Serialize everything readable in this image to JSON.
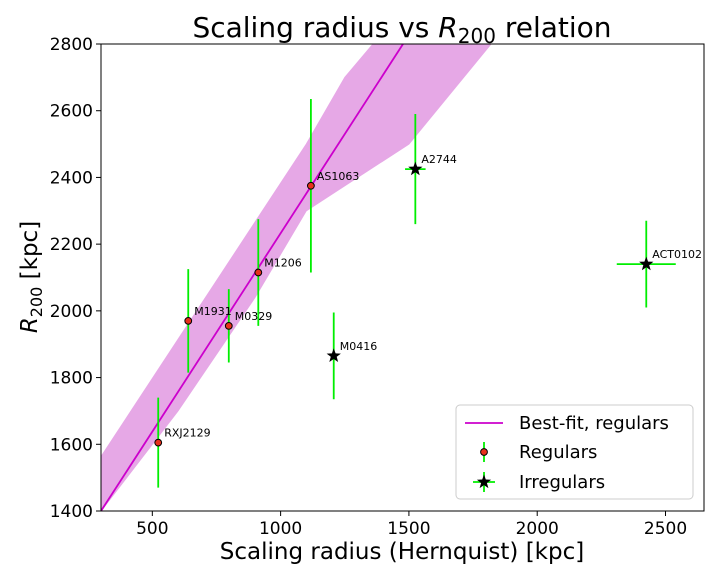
{
  "chart_data": {
    "type": "scatter",
    "title_prefix": "Scaling radius vs ",
    "title_symbol": "R",
    "title_subscript": "200",
    "title_suffix": " relation",
    "xlabel": "Scaling radius (Hernquist) [kpc]",
    "ylabel_symbol": "R",
    "ylabel_subscript": "200",
    "ylabel_suffix": " [kpc]",
    "xlim": [
      300,
      2650
    ],
    "ylim": [
      1400,
      2800
    ],
    "xticks": [
      500,
      1000,
      1500,
      2000,
      2500
    ],
    "yticks": [
      1400,
      1600,
      1800,
      2000,
      2200,
      2400,
      2600,
      2800
    ],
    "grid": false,
    "legend_position": "bottom-right",
    "colors": {
      "fit_line": "#cc00cc",
      "band": "#e6a8e6",
      "errorbar": "#00ee00",
      "regular_marker": "#e8301c",
      "irregular_marker": "#000000"
    },
    "fit_line": {
      "name": "Best-fit, regulars",
      "points": [
        [
          300,
          1400
        ],
        [
          1477,
          2800
        ]
      ]
    },
    "confidence_band": {
      "upper": [
        [
          300,
          1563
        ],
        [
          1100,
          2500
        ],
        [
          1250,
          2700
        ],
        [
          1360,
          2800
        ]
      ],
      "lower": [
        [
          1820,
          2800
        ],
        [
          1500,
          2500
        ],
        [
          1100,
          2300
        ],
        [
          900,
          2040
        ],
        [
          600,
          1700
        ],
        [
          300,
          1400
        ]
      ]
    },
    "series": [
      {
        "name": "Regulars",
        "marker": "circle",
        "points": [
          {
            "label": "RXJ2129",
            "x": 523,
            "y": 1605,
            "xerr": 0,
            "yerr": 135
          },
          {
            "label": "M1931",
            "x": 640,
            "y": 1970,
            "xerr": 0,
            "yerr": 155
          },
          {
            "label": "M0329",
            "x": 798,
            "y": 1955,
            "xerr": 0,
            "yerr": 110
          },
          {
            "label": "M1206",
            "x": 913,
            "y": 2115,
            "xerr": 0,
            "yerr": 160
          },
          {
            "label": "AS1063",
            "x": 1118,
            "y": 2375,
            "xerr": 0,
            "yerr": 260
          }
        ]
      },
      {
        "name": "Irregulars",
        "marker": "star",
        "points": [
          {
            "label": "M0416",
            "x": 1207,
            "y": 1865,
            "xerr": 0,
            "yerr": 130
          },
          {
            "label": "A2744",
            "x": 1525,
            "y": 2425,
            "xerr": 40,
            "yerr": 165
          },
          {
            "label": "ACT0102",
            "x": 2425,
            "y": 2140,
            "xerr": 115,
            "yerr": 130
          }
        ]
      }
    ]
  }
}
